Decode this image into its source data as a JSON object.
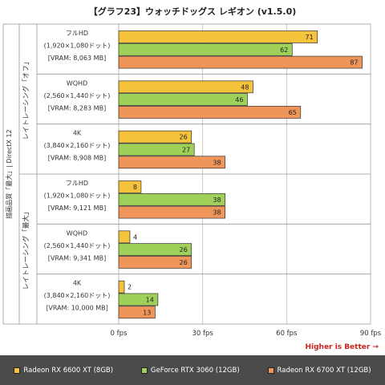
{
  "title": "【グラフ23】ウォッチドッグス レギオン (v1.5.0)",
  "higher_is_better": "Higher is Better →",
  "outer_label": "描画品質「最大」| DirectX 12",
  "colors": {
    "s0": "#f5c33b",
    "s1": "#9fd05a",
    "s2": "#f0955a"
  },
  "legend": [
    {
      "name": "Radeon RX 6600 XT (8GB)",
      "color": "#f5c33b"
    },
    {
      "name": "GeForce RTX 3060 (12GB)",
      "color": "#9fd05a"
    },
    {
      "name": "Radeon RX 6700 XT (12GB)",
      "color": "#f0955a"
    }
  ],
  "chart_data": {
    "type": "bar",
    "orientation": "horizontal",
    "title": "【グラフ23】ウォッチドッグス レギオン (v1.5.0)",
    "x_ticks": [
      "0 fps",
      "30 fps",
      "60 fps",
      "90 fps"
    ],
    "xlim": [
      0,
      90
    ],
    "grid": true,
    "legend_placement": "bottom",
    "groups": [
      {
        "label": "レイトレーシング「オフ」",
        "categories": [
          {
            "lines": [
              "フルHD",
              "(1,920×1,080ドット)",
              "[VRAM: 8,063 MB]"
            ],
            "values": [
              71,
              62,
              87
            ]
          },
          {
            "lines": [
              "WQHD",
              "(2,560×1,440ドット)",
              "[VRAM: 8,283 MB]"
            ],
            "values": [
              48,
              46,
              65
            ]
          },
          {
            "lines": [
              "4K",
              "(3,840×2,160ドット)",
              "[VRAM: 8,908 MB]"
            ],
            "values": [
              26,
              27,
              38
            ]
          }
        ]
      },
      {
        "label": "レイトレーシング「最大」",
        "categories": [
          {
            "lines": [
              "フルHD",
              "(1,920×1,080ドット)",
              "[VRAM: 9,121 MB]"
            ],
            "values": [
              8,
              38,
              38
            ]
          },
          {
            "lines": [
              "WQHD",
              "(2,560×1,440ドット)",
              "[VRAM: 9,341 MB]"
            ],
            "values": [
              4,
              26,
              26
            ]
          },
          {
            "lines": [
              "4K",
              "(3,840×2,160ドット)",
              "[VRAM: 10,000 MB]"
            ],
            "values": [
              2,
              14,
              13
            ]
          }
        ]
      }
    ],
    "series": [
      {
        "name": "Radeon RX 6600 XT (8GB)"
      },
      {
        "name": "GeForce RTX 3060 (12GB)"
      },
      {
        "name": "Radeon RX 6700 XT (12GB)"
      }
    ]
  }
}
